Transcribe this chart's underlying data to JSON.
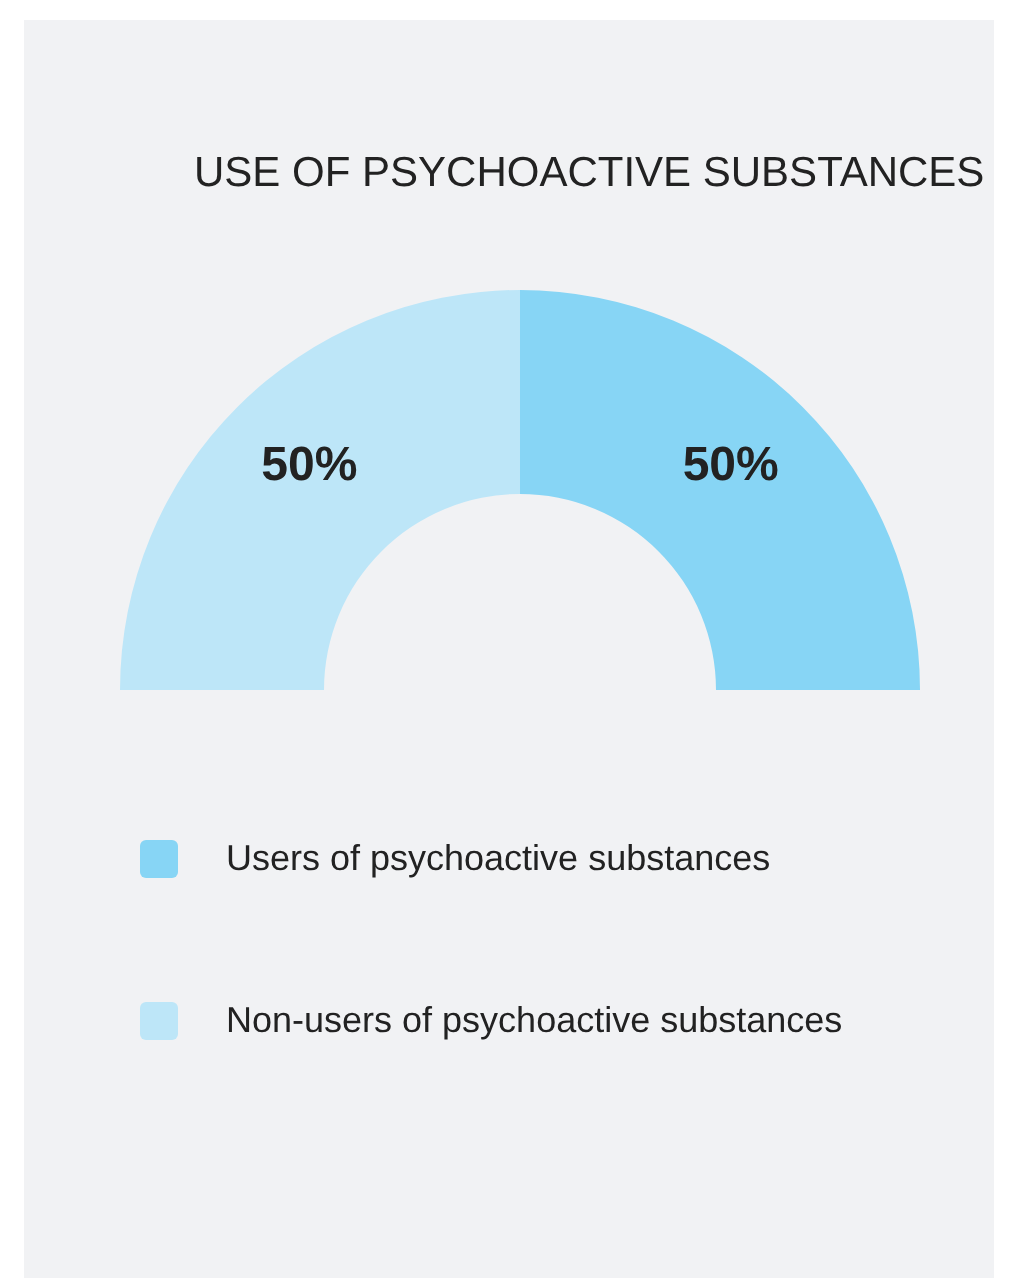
{
  "chart_data": {
    "type": "donut",
    "title": "USE OF PSYCHOACTIVE SUBSTANCES",
    "categories": [
      "Users of psychoactive substances",
      "Non-users of psychoactive substances"
    ],
    "values": [
      50,
      50
    ],
    "colors": [
      "#87d5f5",
      "#bde6f8"
    ],
    "value_labels": [
      "50%",
      "50%"
    ],
    "legend": "bottom"
  }
}
